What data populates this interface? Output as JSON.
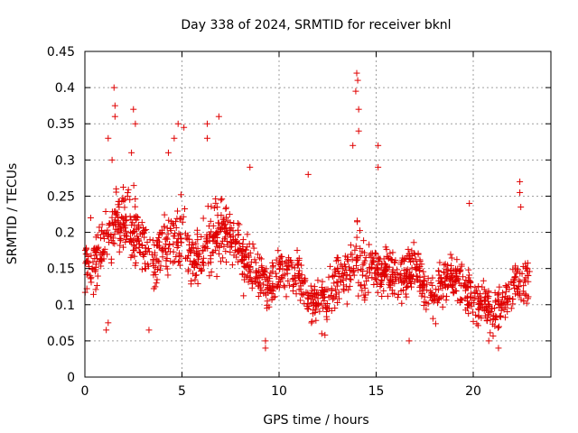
{
  "chart_data": {
    "type": "scatter",
    "title": "Day 338 of 2024, SRMTID for receiver bknl",
    "xlabel": "GPS time / hours",
    "ylabel": "SRMTID / TECUs",
    "xlim": [
      0,
      24
    ],
    "ylim": [
      0,
      0.45
    ],
    "x_ticks": [
      0,
      5,
      10,
      15,
      20
    ],
    "x_tick_labels": [
      "0",
      "5",
      "10",
      "15",
      "20"
    ],
    "y_ticks": [
      0,
      0.05,
      0.1,
      0.15,
      0.2,
      0.25,
      0.3,
      0.35,
      0.4,
      0.45
    ],
    "y_tick_labels": [
      "0",
      "0.05",
      "0.1",
      "0.15",
      "0.2",
      "0.25",
      "0.3",
      "0.35",
      "0.4",
      "0.45"
    ],
    "grid": true,
    "marker": "+",
    "color": "#e00000",
    "x_end": 22.9,
    "series": [
      {
        "name": "SRMTID",
        "envelope_note": "approximate local level (center) and spread of the point cloud, in TECU, at the listed GPS hours",
        "hours": [
          0,
          0.5,
          1,
          1.5,
          2,
          2.5,
          3,
          3.5,
          4,
          4.5,
          5,
          5.5,
          6,
          6.5,
          7,
          7.5,
          8,
          8.5,
          9,
          9.5,
          10,
          10.5,
          11,
          11.5,
          12,
          12.5,
          13,
          13.5,
          14,
          14.5,
          15,
          15.5,
          16,
          16.5,
          17,
          17.5,
          18,
          18.5,
          19,
          19.5,
          20,
          20.5,
          21,
          21.5,
          22,
          22.5,
          22.9
        ],
        "center": [
          0.15,
          0.15,
          0.19,
          0.21,
          0.22,
          0.2,
          0.18,
          0.16,
          0.18,
          0.18,
          0.21,
          0.16,
          0.17,
          0.19,
          0.2,
          0.2,
          0.17,
          0.16,
          0.14,
          0.12,
          0.15,
          0.14,
          0.14,
          0.11,
          0.11,
          0.1,
          0.14,
          0.15,
          0.17,
          0.14,
          0.14,
          0.15,
          0.14,
          0.14,
          0.16,
          0.12,
          0.11,
          0.13,
          0.14,
          0.13,
          0.1,
          0.11,
          0.09,
          0.1,
          0.12,
          0.13,
          0.13
        ],
        "spread": [
          0.04,
          0.04,
          0.06,
          0.07,
          0.07,
          0.06,
          0.05,
          0.05,
          0.05,
          0.06,
          0.06,
          0.05,
          0.05,
          0.06,
          0.06,
          0.05,
          0.05,
          0.05,
          0.04,
          0.04,
          0.04,
          0.04,
          0.04,
          0.04,
          0.04,
          0.04,
          0.05,
          0.05,
          0.06,
          0.05,
          0.04,
          0.04,
          0.04,
          0.04,
          0.04,
          0.04,
          0.04,
          0.04,
          0.04,
          0.04,
          0.04,
          0.04,
          0.04,
          0.04,
          0.04,
          0.04,
          0.03
        ],
        "spikes": [
          {
            "x": 0.3,
            "y": 0.22
          },
          {
            "x": 1.2,
            "y": 0.33
          },
          {
            "x": 1.4,
            "y": 0.3
          },
          {
            "x": 1.5,
            "y": 0.4
          },
          {
            "x": 1.55,
            "y": 0.375
          },
          {
            "x": 1.55,
            "y": 0.36
          },
          {
            "x": 2.5,
            "y": 0.37
          },
          {
            "x": 2.6,
            "y": 0.35
          },
          {
            "x": 2.4,
            "y": 0.31
          },
          {
            "x": 4.8,
            "y": 0.35
          },
          {
            "x": 4.6,
            "y": 0.33
          },
          {
            "x": 5.1,
            "y": 0.345
          },
          {
            "x": 4.3,
            "y": 0.31
          },
          {
            "x": 6.3,
            "y": 0.35
          },
          {
            "x": 6.9,
            "y": 0.36
          },
          {
            "x": 6.3,
            "y": 0.33
          },
          {
            "x": 8.5,
            "y": 0.29
          },
          {
            "x": 11.5,
            "y": 0.28
          },
          {
            "x": 14.0,
            "y": 0.42
          },
          {
            "x": 14.05,
            "y": 0.41
          },
          {
            "x": 13.95,
            "y": 0.395
          },
          {
            "x": 14.1,
            "y": 0.37
          },
          {
            "x": 14.1,
            "y": 0.34
          },
          {
            "x": 13.8,
            "y": 0.32
          },
          {
            "x": 15.1,
            "y": 0.32
          },
          {
            "x": 15.1,
            "y": 0.29
          },
          {
            "x": 19.8,
            "y": 0.24
          },
          {
            "x": 22.4,
            "y": 0.27
          },
          {
            "x": 22.4,
            "y": 0.255
          },
          {
            "x": 22.45,
            "y": 0.235
          },
          {
            "x": 1.1,
            "y": 0.065
          },
          {
            "x": 1.2,
            "y": 0.075
          },
          {
            "x": 3.3,
            "y": 0.065
          },
          {
            "x": 9.3,
            "y": 0.04
          },
          {
            "x": 9.3,
            "y": 0.05
          },
          {
            "x": 12.2,
            "y": 0.06
          },
          {
            "x": 16.7,
            "y": 0.05
          },
          {
            "x": 21.3,
            "y": 0.04
          },
          {
            "x": 20.8,
            "y": 0.05
          }
        ]
      }
    ]
  }
}
